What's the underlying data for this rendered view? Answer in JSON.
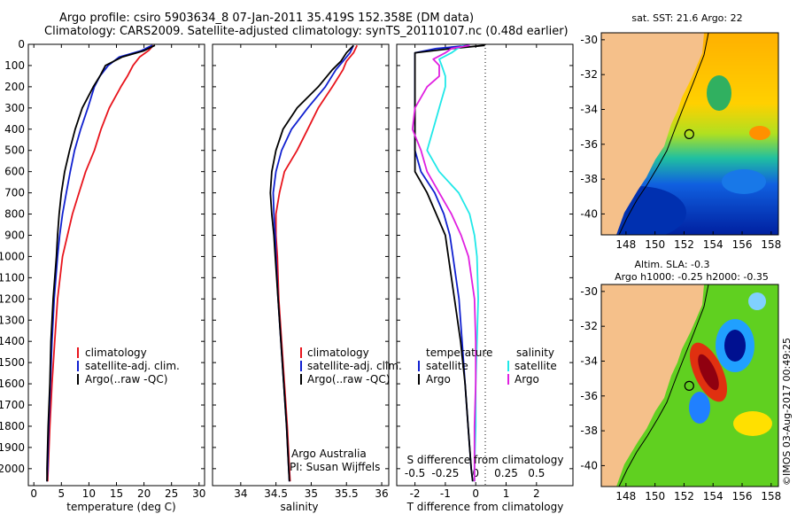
{
  "title": {
    "line1": "Argo profile: csiro 5903634_8 07-Jan-2011 35.419S 152.358E (DM data)",
    "line2": "Climatology: CARS2009. Satellite-adjusted climatology: synTS_20110107.nc (0.48d earlier)"
  },
  "watermark": "©IMOS 03-Aug-2017 00:49:25",
  "colors": {
    "clim": "#e8141c",
    "sat": "#1020d0",
    "argo": "#000000",
    "satS": "#20e8e8",
    "argoS": "#e020e0",
    "land": "#f5c08a"
  },
  "chart_data": [
    {
      "type": "line",
      "id": "temperature",
      "xlabel": "temperature (deg C)",
      "ylabel": "",
      "xlim": [
        -1,
        31
      ],
      "ylim": [
        2080,
        0
      ],
      "xticks": [
        0,
        5,
        10,
        15,
        20,
        25,
        30
      ],
      "yticks": [
        0,
        100,
        200,
        300,
        400,
        500,
        600,
        700,
        800,
        900,
        1000,
        1100,
        1200,
        1300,
        1400,
        1500,
        1600,
        1700,
        1800,
        1900,
        2000
      ],
      "legend": [
        "climatology",
        "satellite-adj. clim.",
        "Argo(..raw -QC)"
      ],
      "depth": [
        5,
        30,
        60,
        100,
        150,
        200,
        300,
        400,
        500,
        600,
        700,
        800,
        900,
        1000,
        1200,
        1400,
        1600,
        1800,
        2000,
        2060
      ],
      "series": [
        {
          "name": "climatology",
          "color": "#e8141c",
          "values": [
            21.7,
            20.8,
            19.2,
            18.0,
            17.0,
            15.8,
            13.7,
            12.2,
            11.0,
            9.4,
            8.2,
            7.0,
            6.1,
            5.2,
            4.3,
            3.8,
            3.3,
            2.9,
            2.6,
            2.5
          ]
        },
        {
          "name": "satellite-adj. clim.",
          "color": "#1020d0",
          "values": [
            21.5,
            19.5,
            15.5,
            13.5,
            12.0,
            11.0,
            9.8,
            8.5,
            7.4,
            6.6,
            5.9,
            5.2,
            4.7,
            4.3,
            3.7,
            3.3,
            3.0,
            2.7,
            2.5,
            2.4
          ]
        },
        {
          "name": "Argo(..raw -QC)",
          "color": "#000000",
          "values": [
            22.0,
            20.0,
            16.0,
            13.0,
            12.0,
            10.8,
            8.8,
            7.5,
            6.5,
            5.6,
            5.0,
            4.6,
            4.3,
            4.1,
            3.5,
            3.1,
            2.9,
            2.6,
            2.4,
            2.4
          ]
        }
      ]
    },
    {
      "type": "line",
      "id": "salinity",
      "xlabel": "salinity",
      "xlim": [
        33.6,
        36.1
      ],
      "xticks": [
        34,
        34.5,
        35,
        35.5,
        36
      ],
      "legend": [
        "climatology",
        "satellite-adj. clim.",
        "Argo(..raw -QC)"
      ],
      "annotation": [
        "Argo Australia",
        "PI: Susan Wijffels"
      ],
      "depth": [
        5,
        40,
        80,
        120,
        200,
        300,
        400,
        500,
        600,
        700,
        800,
        900,
        1000,
        1200,
        1400,
        1600,
        1800,
        2000,
        2060
      ],
      "series": [
        {
          "name": "climatology",
          "color": "#e8141c",
          "values": [
            35.65,
            35.6,
            35.5,
            35.45,
            35.3,
            35.1,
            34.95,
            34.8,
            34.62,
            34.55,
            34.5,
            34.5,
            34.52,
            34.54,
            34.58,
            34.62,
            34.66,
            34.69,
            34.7
          ]
        },
        {
          "name": "satellite-adj. clim.",
          "color": "#1020d0",
          "values": [
            35.6,
            35.55,
            35.45,
            35.35,
            35.2,
            34.95,
            34.72,
            34.58,
            34.5,
            34.46,
            34.47,
            34.49,
            34.5,
            34.53,
            34.57,
            34.61,
            34.65,
            34.68,
            34.69
          ]
        },
        {
          "name": "Argo(..raw -QC)",
          "color": "#000000",
          "values": [
            35.6,
            35.5,
            35.42,
            35.3,
            35.1,
            34.8,
            34.6,
            34.5,
            34.44,
            34.42,
            34.44,
            34.47,
            34.49,
            34.53,
            34.57,
            34.61,
            34.65,
            34.68,
            34.69
          ]
        }
      ]
    },
    {
      "type": "line",
      "id": "difference",
      "xlabel": "T difference from climatology",
      "xlabel_top": "S difference from climatology",
      "xlim": [
        -2.6,
        3.2
      ],
      "xticks": [
        -2,
        -1,
        0,
        1,
        2
      ],
      "sticks": [
        -0.5,
        -0.25,
        0,
        0.25,
        0.5
      ],
      "legend_headers": [
        "temperature",
        "salinity"
      ],
      "legend": [
        "satellite",
        "Argo",
        "satellite",
        "Argo"
      ],
      "depth": [
        5,
        20,
        40,
        70,
        100,
        150,
        200,
        300,
        400,
        500,
        600,
        700,
        800,
        900,
        1000,
        1200,
        1400,
        1600,
        1800,
        2000,
        2060
      ],
      "series": [
        {
          "name": "T satellite",
          "color": "#1020d0",
          "values": [
            -0.2,
            -1.3,
            -2.0,
            -2.0,
            -2.0,
            -2.0,
            -2.0,
            -2.0,
            -2.0,
            -2.0,
            -1.8,
            -1.35,
            -1.05,
            -0.85,
            -0.75,
            -0.55,
            -0.45,
            -0.35,
            -0.25,
            -0.15,
            -0.1
          ]
        },
        {
          "name": "T Argo",
          "color": "#000000",
          "values": [
            0.3,
            -0.8,
            -2.0,
            -2.0,
            -2.0,
            -2.0,
            -2.0,
            -2.0,
            -2.0,
            -2.0,
            -2.0,
            -1.6,
            -1.3,
            -1.0,
            -0.9,
            -0.7,
            -0.5,
            -0.35,
            -0.25,
            -0.15,
            -0.1
          ]
        },
        {
          "name": "S satellite",
          "color": "#20e8e8",
          "values": [
            -0.1,
            -0.15,
            -0.2,
            -0.3,
            -0.28,
            -0.25,
            -0.25,
            -0.3,
            -0.35,
            -0.4,
            -0.3,
            -0.14,
            -0.05,
            -0.01,
            0.01,
            0.02,
            0.01,
            0.0,
            0.0,
            -0.01,
            -0.01
          ]
        },
        {
          "name": "S Argo",
          "color": "#e020e0",
          "values": [
            -0.05,
            -0.2,
            -0.25,
            -0.35,
            -0.3,
            -0.3,
            -0.4,
            -0.5,
            -0.52,
            -0.45,
            -0.4,
            -0.3,
            -0.2,
            -0.12,
            -0.06,
            -0.01,
            0.0,
            0.0,
            -0.01,
            -0.01,
            -0.01
          ]
        }
      ]
    },
    {
      "type": "heatmap",
      "id": "sst-map",
      "title": "sat. SST: 21.6 Argo: 22",
      "xticks": [
        148,
        150,
        152,
        154,
        156,
        158
      ],
      "yticks": [
        -30,
        -32,
        -34,
        -36,
        -38,
        -40
      ],
      "xlim": [
        146.3,
        158.5
      ],
      "ylim": [
        -41.2,
        -29.6
      ],
      "argo_position": [
        152.358,
        -35.419
      ]
    },
    {
      "type": "heatmap",
      "id": "sla-map",
      "title": "Altim. SLA: -0.3",
      "subtitle": "Argo h1000: -0.25 h2000: -0.35",
      "xticks": [
        148,
        150,
        152,
        154,
        156,
        158
      ],
      "yticks": [
        -30,
        -32,
        -34,
        -36,
        -38,
        -40
      ],
      "xlim": [
        146.3,
        158.5
      ],
      "ylim": [
        -41.2,
        -29.6
      ],
      "argo_position": [
        152.358,
        -35.419
      ]
    }
  ]
}
